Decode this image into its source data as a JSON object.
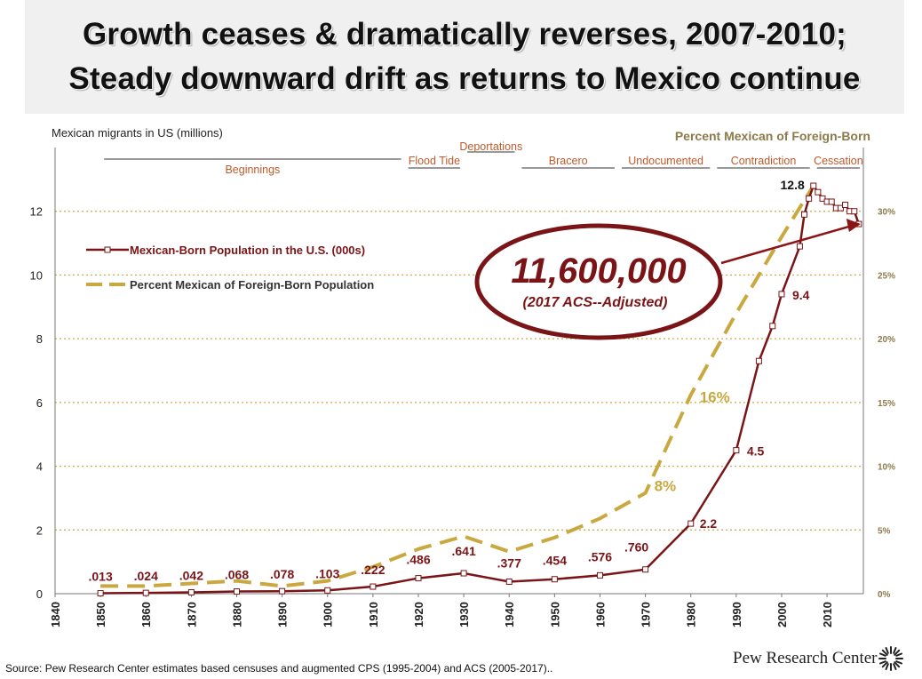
{
  "title": {
    "line1": "Growth ceases & dramatically reverses, 2007-2010;",
    "line2": "Steady downward drift as returns to Mexico continue"
  },
  "footer": {
    "source": "Source: Pew Research Center estimates based censuses and augmented CPS (1995-2004) and ACS (2005-2017)..",
    "brand": "Pew Research Center"
  },
  "callout": {
    "value": "11,600,000",
    "note": "(2017 ACS--Adjusted)"
  },
  "colors": {
    "population": "#7a1416",
    "percent": "#c9a93f",
    "era_label": "#c05a2a",
    "grid": "#c9a93f"
  },
  "chart_data": {
    "type": "line",
    "title": "Growth ceases & dramatically reverses, 2007-2010; Steady downward drift as returns to Mexico continue",
    "xlabel": "",
    "ylabel": "Mexican migrants in US (millions)",
    "y2label": "Percent Mexican of Foreign-Born",
    "xlim": [
      1840,
      2018
    ],
    "ylim": [
      0,
      14
    ],
    "y2lim": [
      0,
      35
    ],
    "x_ticks": [
      1840,
      1850,
      1860,
      1870,
      1880,
      1890,
      1900,
      1910,
      1920,
      1930,
      1940,
      1950,
      1960,
      1970,
      1980,
      1990,
      2000,
      2010
    ],
    "y_ticks": [
      0,
      2,
      4,
      6,
      8,
      10,
      12
    ],
    "y2_ticks": [
      "0%",
      "5%",
      "10%",
      "15%",
      "20%",
      "25%",
      "30%"
    ],
    "legend": [
      "Mexican-Born Population in the U.S. (000s)",
      "Percent Mexican of Foreign-Born Population"
    ],
    "series": [
      {
        "name": "Mexican-Born Population in the U.S. (000s)",
        "axis": "left",
        "x": [
          1850,
          1860,
          1870,
          1880,
          1890,
          1900,
          1910,
          1920,
          1930,
          1940,
          1950,
          1960,
          1970,
          1980,
          1990,
          1995,
          1998,
          2000,
          2004,
          2005,
          2006,
          2007,
          2008,
          2009,
          2010,
          2011,
          2012,
          2013,
          2014,
          2015,
          2016,
          2017
        ],
        "values": [
          0.013,
          0.024,
          0.042,
          0.068,
          0.078,
          0.103,
          0.222,
          0.486,
          0.641,
          0.377,
          0.454,
          0.576,
          0.76,
          2.2,
          4.5,
          7.3,
          8.4,
          9.4,
          10.9,
          11.9,
          12.4,
          12.8,
          12.6,
          12.4,
          12.3,
          12.3,
          12.1,
          12.1,
          12.2,
          12.0,
          12.0,
          11.6
        ]
      },
      {
        "name": "Percent Mexican of Foreign-Born Population",
        "axis": "right",
        "x": [
          1850,
          1860,
          1870,
          1880,
          1890,
          1900,
          1910,
          1920,
          1930,
          1940,
          1950,
          1960,
          1970,
          1980,
          1990,
          2000,
          2007
        ],
        "values": [
          0.6,
          0.6,
          0.8,
          1.0,
          0.6,
          1.0,
          2.1,
          3.5,
          4.5,
          3.3,
          4.4,
          5.9,
          7.9,
          15.6,
          22.0,
          28.0,
          32.0
        ]
      }
    ],
    "point_labels": [
      {
        "x": 1850,
        "y": 0.013,
        "text": ".013"
      },
      {
        "x": 1860,
        "y": 0.024,
        "text": ".024"
      },
      {
        "x": 1870,
        "y": 0.042,
        "text": ".042"
      },
      {
        "x": 1880,
        "y": 0.068,
        "text": ".068"
      },
      {
        "x": 1890,
        "y": 0.078,
        "text": ".078"
      },
      {
        "x": 1900,
        "y": 0.103,
        "text": ".103"
      },
      {
        "x": 1910,
        "y": 0.222,
        "text": ".222"
      },
      {
        "x": 1920,
        "y": 0.486,
        "text": ".486"
      },
      {
        "x": 1930,
        "y": 0.641,
        "text": ".641"
      },
      {
        "x": 1940,
        "y": 0.377,
        "text": ".377"
      },
      {
        "x": 1950,
        "y": 0.454,
        "text": ".454"
      },
      {
        "x": 1960,
        "y": 0.576,
        "text": ".576"
      },
      {
        "x": 1970,
        "y": 0.76,
        "text": ".760"
      },
      {
        "x": 1980,
        "y": 2.2,
        "text": "2.2"
      },
      {
        "x": 1990,
        "y": 4.5,
        "text": "4.5"
      },
      {
        "x": 2000,
        "y": 9.4,
        "text": "9.4"
      },
      {
        "x": 2007,
        "y": 12.8,
        "text": "12.8"
      }
    ],
    "percent_labels": [
      {
        "text": "8%",
        "x": 1970,
        "y2": 7.9
      },
      {
        "text": "16%",
        "x": 1980,
        "y2": 15.6
      }
    ],
    "eras": [
      {
        "label": "Beginnings",
        "from": 1850,
        "to": 1917
      },
      {
        "label": "Flood Tide",
        "from": 1917,
        "to": 1930
      },
      {
        "label": "Deportations",
        "from": 1930,
        "to": 1942
      },
      {
        "label": "Bracero",
        "from": 1942,
        "to": 1964
      },
      {
        "label": "Undocumented",
        "from": 1964,
        "to": 1985
      },
      {
        "label": "Contradiction",
        "from": 1985,
        "to": 2007
      },
      {
        "label": "Cessation",
        "from": 2007,
        "to": 2018
      }
    ]
  }
}
